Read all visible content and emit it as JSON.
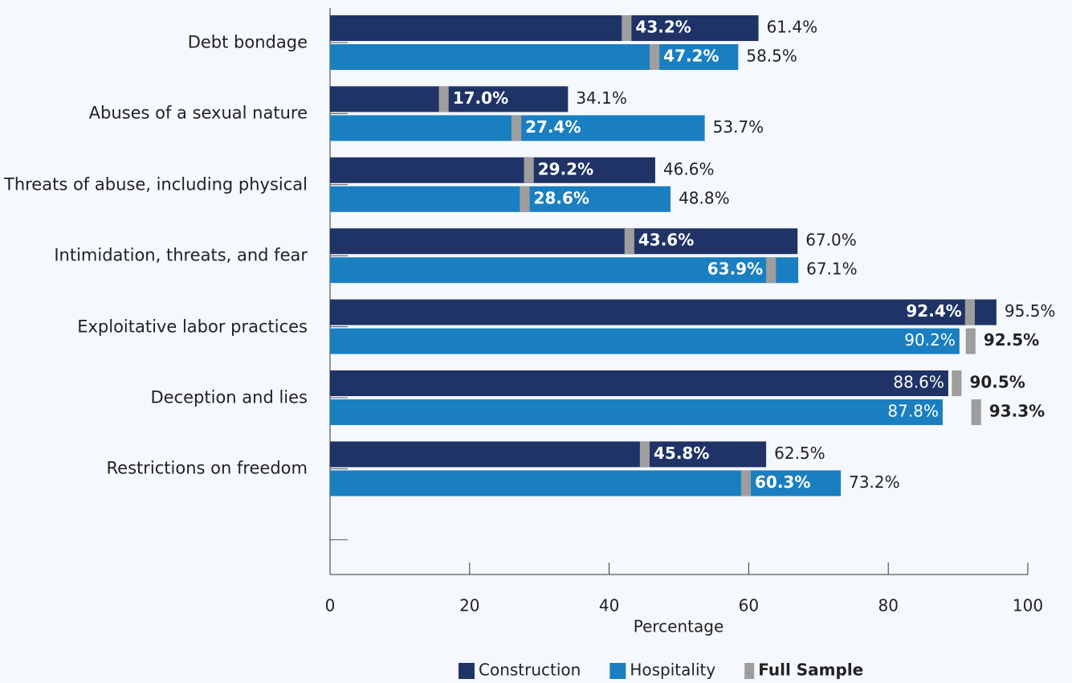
{
  "chart_data": {
    "type": "bar",
    "orientation": "horizontal",
    "categories": [
      "Debt bondage",
      "Abuses of a sexual nature",
      "Threats of abuse, including physical",
      "Intimidation, threats, and fear",
      "Exploitative labor practices",
      "Deception and lies",
      "Restrictions on freedom"
    ],
    "series": [
      {
        "name": "Construction",
        "color": "#1f3366",
        "values": [
          61.4,
          34.1,
          46.6,
          67.0,
          95.5,
          88.6,
          62.5
        ],
        "value_labels": [
          "61.4%",
          "34.1%",
          "46.6%",
          "67.0%",
          "95.5%",
          "88.6%",
          "62.5%"
        ],
        "full_sample": [
          43.2,
          17.0,
          29.2,
          43.6,
          92.4,
          90.5,
          45.8
        ],
        "full_sample_labels": [
          "43.2%",
          "17.0%",
          "29.2%",
          "43.6%",
          "92.4%",
          "90.5%",
          "45.8%"
        ]
      },
      {
        "name": "Hospitality",
        "color": "#1a7fc1",
        "values": [
          58.5,
          53.7,
          48.8,
          67.1,
          90.2,
          87.8,
          73.2
        ],
        "value_labels": [
          "58.5%",
          "53.7%",
          "48.8%",
          "67.1%",
          "90.2%",
          "87.8%",
          "73.2%"
        ],
        "full_sample": [
          47.2,
          27.4,
          28.6,
          63.9,
          92.5,
          93.3,
          60.3
        ],
        "full_sample_labels": [
          "47.2%",
          "27.4%",
          "28.6%",
          "63.9%",
          "92.5%",
          "93.3%",
          "60.3%"
        ]
      }
    ],
    "marker_series": {
      "name": "Full Sample",
      "color": "#9e9e9e"
    },
    "xlabel": "Percentage",
    "xlim": [
      0,
      100
    ],
    "xticks": [
      0,
      20,
      40,
      60,
      80,
      100
    ],
    "legend": "bottom"
  }
}
